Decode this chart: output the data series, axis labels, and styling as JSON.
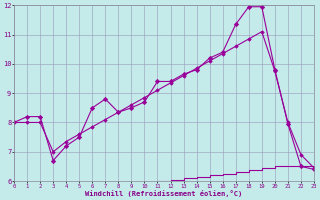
{
  "background_color": "#c5eaea",
  "grid_color": "#9999bb",
  "line_color": "#990099",
  "xlim": [
    0,
    23
  ],
  "ylim": [
    6,
    12
  ],
  "xtick_vals": [
    0,
    1,
    2,
    3,
    4,
    5,
    6,
    7,
    8,
    9,
    10,
    11,
    12,
    13,
    14,
    15,
    16,
    17,
    18,
    19,
    20,
    21,
    22,
    23
  ],
  "ytick_vals": [
    6,
    7,
    8,
    9,
    10,
    11,
    12
  ],
  "xlabel": "Windchill (Refroidissement éolien,°C)",
  "s1x": [
    0,
    1,
    2,
    3,
    4,
    5,
    6,
    7,
    8,
    9,
    10,
    11,
    12,
    13,
    14,
    15,
    16,
    17,
    18,
    19,
    20,
    21,
    22,
    23
  ],
  "s1y": [
    8.0,
    8.2,
    8.2,
    6.7,
    7.2,
    7.5,
    8.5,
    8.8,
    8.35,
    8.5,
    8.7,
    9.4,
    9.4,
    9.65,
    9.8,
    10.2,
    10.4,
    11.35,
    11.95,
    11.95,
    9.8,
    7.95,
    6.5,
    6.4
  ],
  "s2x": [
    0,
    1,
    2,
    3,
    4,
    5,
    6,
    7,
    8,
    9,
    10,
    11,
    12,
    13,
    14,
    15,
    16,
    17,
    18,
    19,
    20,
    21,
    22,
    23
  ],
  "s2y": [
    8.0,
    8.0,
    8.0,
    7.0,
    7.35,
    7.6,
    7.85,
    8.1,
    8.35,
    8.6,
    8.85,
    9.1,
    9.35,
    9.6,
    9.85,
    10.1,
    10.35,
    10.6,
    10.85,
    11.1,
    9.75,
    8.0,
    6.9,
    6.45
  ],
  "s3x": [
    0,
    1,
    2,
    3,
    4,
    5,
    6,
    7,
    8,
    9,
    10,
    11,
    12,
    13,
    14,
    15,
    16,
    17,
    18,
    19,
    20,
    21,
    22,
    23
  ],
  "s3y": [
    5.95,
    5.95,
    5.95,
    5.95,
    5.95,
    5.95,
    5.95,
    5.95,
    5.95,
    5.95,
    5.98,
    6.0,
    6.05,
    6.1,
    6.15,
    6.2,
    6.25,
    6.3,
    6.38,
    6.45,
    6.5,
    6.5,
    6.5,
    6.45
  ]
}
